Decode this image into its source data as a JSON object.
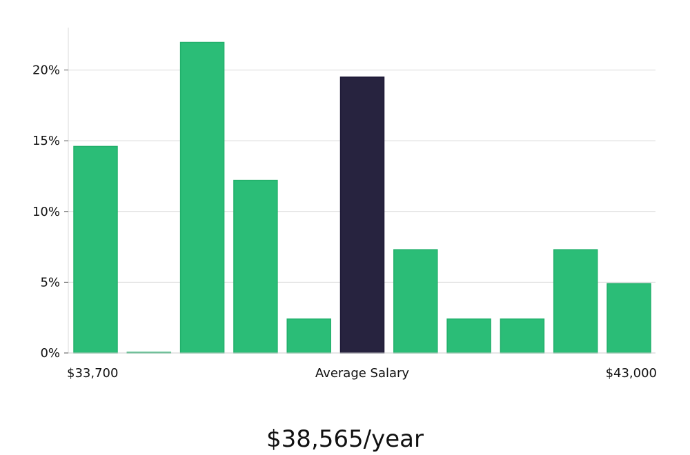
{
  "chart_data": {
    "type": "bar",
    "y_tick_labels": [
      "0%",
      "5%",
      "10%",
      "15%",
      "20%"
    ],
    "y_ticks": [
      0,
      5,
      10,
      15,
      20
    ],
    "ylim": [
      0,
      23
    ],
    "grid": true,
    "values": [
      14.6,
      0,
      21.95,
      12.2,
      2.4,
      19.5,
      7.3,
      2.4,
      2.4,
      7.3,
      4.9
    ],
    "highlight_index": 5,
    "x_labels": {
      "left": "$33,700",
      "center": "Average Salary",
      "right": "$43,000"
    },
    "bar_color": "#2bbd77",
    "highlight_color": "#27233f"
  },
  "summary": {
    "salary_text": "$38,565/year"
  }
}
